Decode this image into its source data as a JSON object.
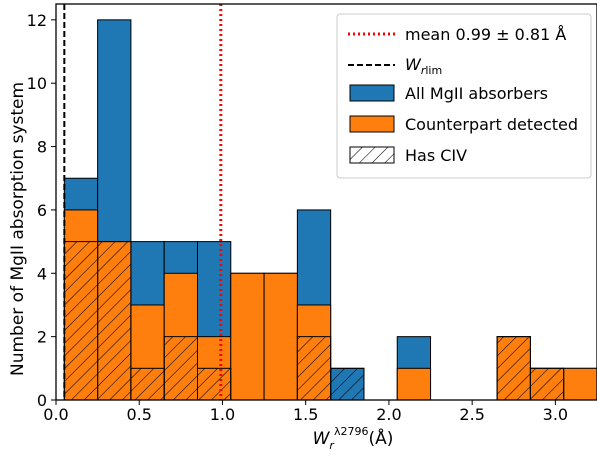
{
  "chart_data": {
    "type": "bar",
    "xlabel": "W_r^{λ2796}(Å)",
    "ylabel": "Number of MgII absorption system",
    "xlim": [
      0.0,
      3.25
    ],
    "ylim": [
      0,
      12.5
    ],
    "x_ticks": [
      0.0,
      0.5,
      1.0,
      1.5,
      2.0,
      2.5,
      3.0
    ],
    "x_tick_labels": [
      "0.0",
      "0.5",
      "1.0",
      "1.5",
      "2.0",
      "2.5",
      "3.0"
    ],
    "y_ticks": [
      0,
      2,
      4,
      6,
      8,
      10,
      12
    ],
    "y_tick_labels": [
      "0",
      "2",
      "4",
      "6",
      "8",
      "10",
      "12"
    ],
    "bins": [
      [
        0.05,
        0.25
      ],
      [
        0.25,
        0.45
      ],
      [
        0.45,
        0.65
      ],
      [
        0.65,
        0.85
      ],
      [
        0.85,
        1.05
      ],
      [
        1.05,
        1.25
      ],
      [
        1.25,
        1.45
      ],
      [
        1.45,
        1.65
      ],
      [
        1.65,
        1.85
      ],
      [
        1.85,
        2.05
      ],
      [
        2.05,
        2.25
      ],
      [
        2.25,
        2.45
      ],
      [
        2.45,
        2.65
      ],
      [
        2.65,
        2.85
      ],
      [
        2.85,
        3.05
      ],
      [
        3.05,
        3.25
      ]
    ],
    "series": [
      {
        "name": "All MgII absorbers",
        "color": "#1f77b4",
        "values": [
          7,
          12,
          5,
          5,
          5,
          4,
          4,
          6,
          1,
          0,
          2,
          0,
          0,
          2,
          1,
          1
        ]
      },
      {
        "name": "Counterpart detected",
        "color": "#ff7f0e",
        "values": [
          6,
          5,
          3,
          4,
          2,
          4,
          4,
          3,
          0,
          0,
          1,
          0,
          0,
          2,
          1,
          1
        ]
      },
      {
        "name": "Has CIV",
        "hatch": true,
        "values": [
          5,
          5,
          1,
          2,
          1,
          0,
          0,
          2,
          1,
          0,
          0,
          0,
          0,
          2,
          1,
          0
        ]
      }
    ],
    "vlines": [
      {
        "label": "mean 0.99 ± 0.81 Å",
        "x": 0.99,
        "color": "#ff0000",
        "style": "dotted"
      },
      {
        "label": "W_rlim",
        "x": 0.05,
        "color": "#000000",
        "style": "dashed"
      }
    ],
    "legend_placement": "top-right"
  }
}
